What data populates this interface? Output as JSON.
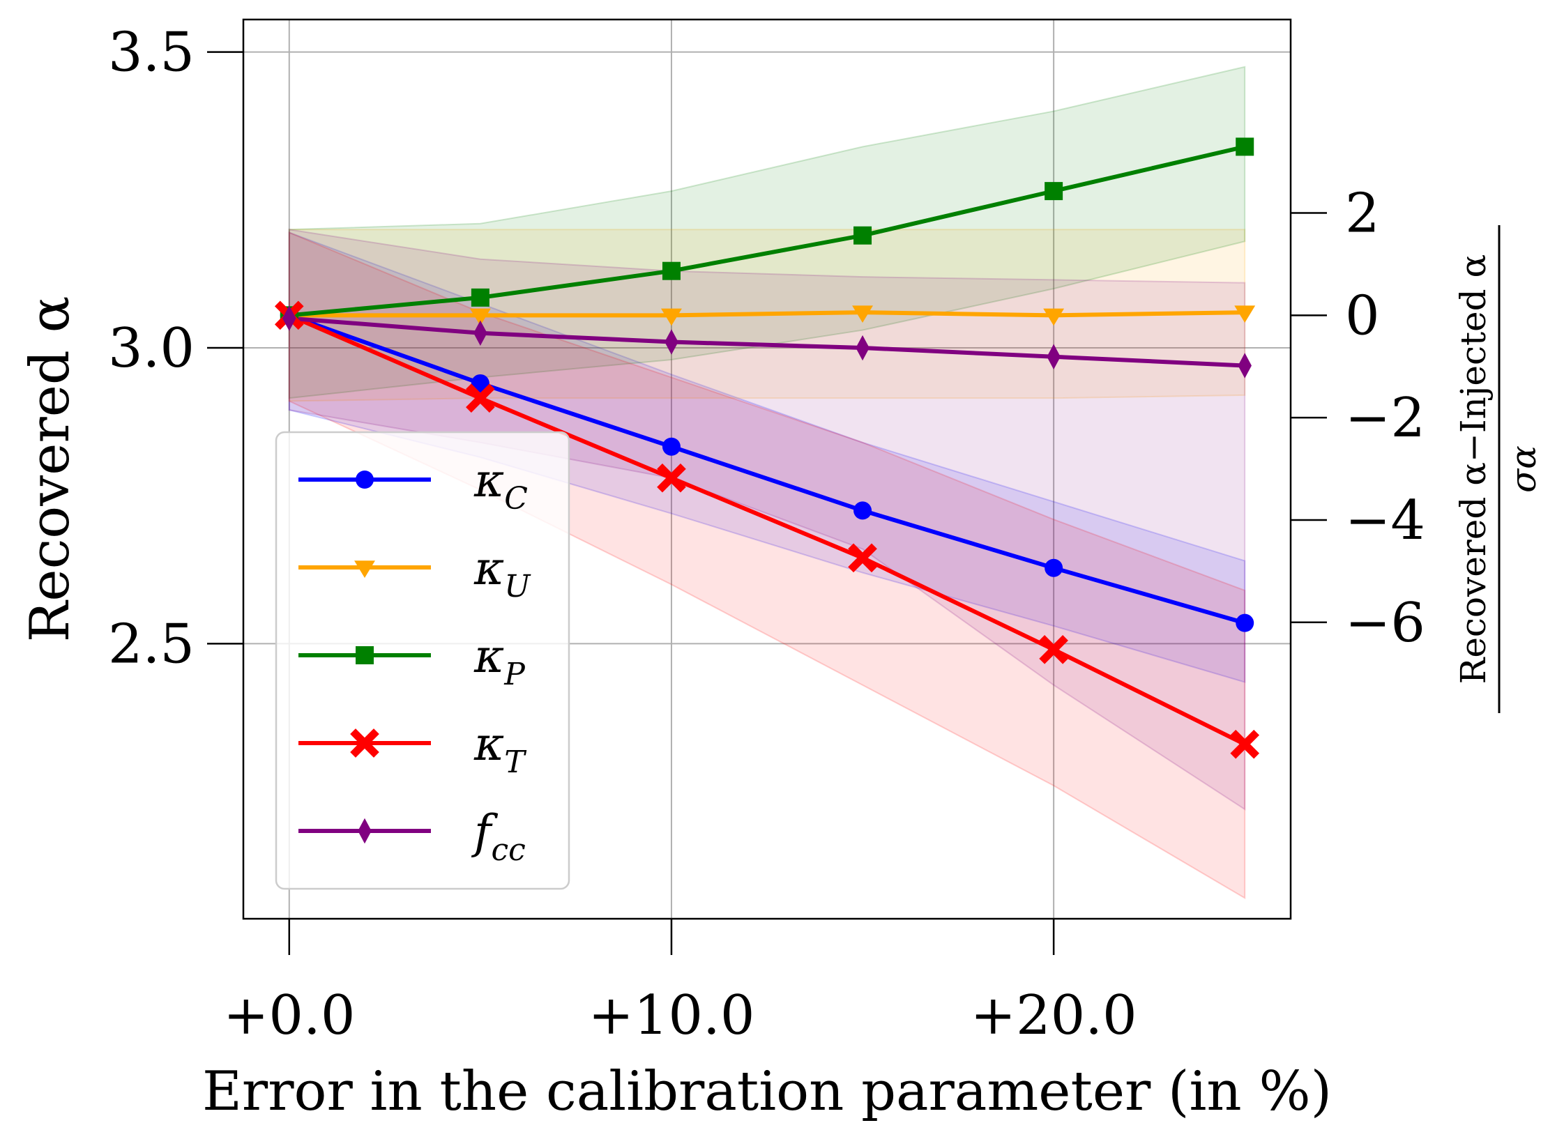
{
  "chart_data": {
    "type": "line",
    "x": [
      0,
      5,
      10,
      15,
      20,
      25
    ],
    "xlabel": "Error in the calibration parameter (in %)",
    "ylabel": "Recovered α",
    "xlim": [
      -1.2,
      26.2
    ],
    "ylim": [
      2.035,
      3.555
    ],
    "x_ticks": [
      {
        "value": 0,
        "label": "+0.0"
      },
      {
        "value": 10,
        "label": "+10.0"
      },
      {
        "value": 20,
        "label": "+20.0"
      }
    ],
    "y_ticks": [
      {
        "value": 2.5,
        "label": "2.5"
      },
      {
        "value": 3.0,
        "label": "3.0"
      },
      {
        "value": 3.5,
        "label": "3.5"
      }
    ],
    "right_axis": {
      "label_numerator": "Recovered α−Injected α",
      "label_denominator": "σα",
      "reference_zero": 3.055,
      "sigma": 0.0865,
      "ticks": [
        {
          "value": 2,
          "label": "2"
        },
        {
          "value": 0,
          "label": "0"
        },
        {
          "value": -2,
          "label": "−2"
        },
        {
          "value": -4,
          "label": "−4"
        },
        {
          "value": -6,
          "label": "−6"
        }
      ]
    },
    "grid": true,
    "legend_position": "lower-left",
    "series": [
      {
        "name": "κ",
        "sub": "C",
        "color": "#0000ff",
        "marker": "circle",
        "values": [
          3.055,
          2.94,
          2.833,
          2.725,
          2.628,
          2.535
        ],
        "lower": [
          2.895,
          2.815,
          2.72,
          2.62,
          2.53,
          2.435
        ],
        "upper": [
          3.195,
          3.075,
          2.955,
          2.84,
          2.74,
          2.64
        ]
      },
      {
        "name": "κ",
        "sub": "U",
        "color": "#ffa500",
        "marker": "triangle-down",
        "values": [
          3.055,
          3.055,
          3.055,
          3.06,
          3.055,
          3.06
        ],
        "lower": [
          2.91,
          2.915,
          2.915,
          2.915,
          2.915,
          2.92
        ],
        "upper": [
          3.2,
          3.2,
          3.2,
          3.2,
          3.2,
          3.2
        ]
      },
      {
        "name": "κ",
        "sub": "P",
        "color": "#008000",
        "marker": "square",
        "values": [
          3.055,
          3.085,
          3.13,
          3.19,
          3.265,
          3.34
        ],
        "lower": [
          2.915,
          2.95,
          2.98,
          3.03,
          3.1,
          3.18
        ],
        "upper": [
          3.2,
          3.21,
          3.265,
          3.34,
          3.4,
          3.475
        ]
      },
      {
        "name": "κ",
        "sub": "T",
        "color": "#ff0000",
        "marker": "x-filled",
        "values": [
          3.055,
          2.915,
          2.78,
          2.645,
          2.49,
          2.33
        ],
        "lower": [
          2.91,
          2.76,
          2.6,
          2.43,
          2.26,
          2.07
        ],
        "upper": [
          3.195,
          3.06,
          2.95,
          2.84,
          2.71,
          2.59
        ]
      },
      {
        "name": "f",
        "sub": "cc",
        "color": "#800080",
        "marker": "thin-diamond",
        "values": [
          3.05,
          3.025,
          3.01,
          3.0,
          2.985,
          2.97
        ],
        "lower": [
          2.895,
          2.84,
          2.78,
          2.66,
          2.43,
          2.22
        ],
        "upper": [
          3.2,
          3.15,
          3.13,
          3.12,
          3.115,
          3.11
        ]
      }
    ]
  }
}
